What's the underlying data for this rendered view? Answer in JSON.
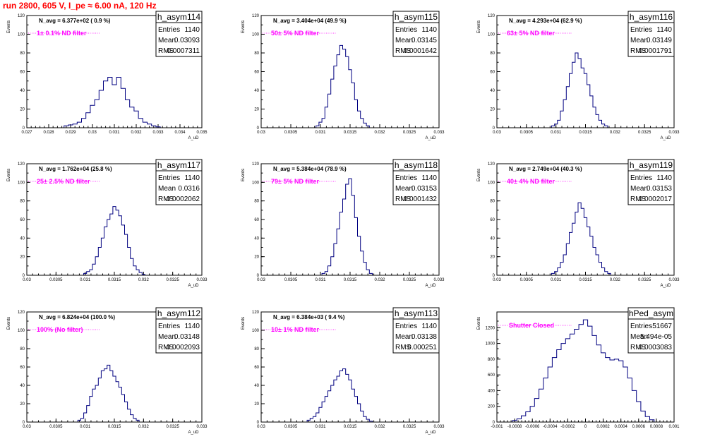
{
  "run_title": "run 2800,   605 V, I_pe ≈ 6.00 nA, 120 Hz",
  "colors": {
    "line": "#000080",
    "title": "#ff0000",
    "filter": "#ff00ff"
  },
  "chart_data": [
    {
      "type": "histogram",
      "name": "h_asym114",
      "nb_label": "N_avg = 6.377e+02 ( 0.9 %)",
      "filter_label": "1± 0.1% ND filter",
      "stats": {
        "entries": "1140",
        "mean": "0.03093",
        "rms": "0.0007311"
      },
      "ylabel": "Events",
      "xlabel": "A_uD",
      "xlim": [
        0.027,
        0.035
      ],
      "ylim": [
        0,
        120
      ],
      "xticks": [
        "0.027",
        "0.028",
        "0.029",
        "0.03",
        "0.031",
        "0.032",
        "0.033",
        "0.034",
        "0.035"
      ],
      "yticks": [
        "0",
        "20",
        "40",
        "60",
        "80",
        "100",
        "120"
      ],
      "hist_x": [
        0.0286,
        0.0288,
        0.029,
        0.0292,
        0.0294,
        0.0296,
        0.0298,
        0.03,
        0.0302,
        0.0304,
        0.0306,
        0.0308,
        0.031,
        0.0312,
        0.0314,
        0.0316,
        0.0318,
        0.032,
        0.0322,
        0.0324,
        0.0326,
        0.0328,
        0.033,
        0.0332
      ],
      "values": [
        0,
        2,
        3,
        4,
        6,
        10,
        16,
        24,
        30,
        40,
        50,
        54,
        46,
        54,
        42,
        30,
        22,
        18,
        10,
        6,
        4,
        2,
        1,
        0
      ]
    },
    {
      "type": "histogram",
      "name": "h_asym115",
      "nb_label": "N_avg = 3.404e+04 (49.9 %)",
      "filter_label": "50± 5% ND filter",
      "stats": {
        "entries": "1140",
        "mean": "0.03145",
        "rms": "0.0001642"
      },
      "ylabel": "Events",
      "xlabel": "A_uD",
      "xlim": [
        0.03,
        0.033
      ],
      "ylim": [
        0,
        120
      ],
      "xticks": [
        "0.03",
        "0.0305",
        "0.031",
        "0.0315",
        "0.032",
        "0.0325",
        "0.033"
      ],
      "yticks": [
        "0",
        "20",
        "40",
        "60",
        "80",
        "100",
        "120"
      ],
      "hist_x": [
        0.0309,
        0.03095,
        0.031,
        0.03105,
        0.0311,
        0.03115,
        0.0312,
        0.03125,
        0.0313,
        0.03135,
        0.0314,
        0.03145,
        0.0315,
        0.03155,
        0.0316,
        0.03165,
        0.0317,
        0.03175,
        0.0318,
        0.03185
      ],
      "values": [
        0,
        2,
        6,
        10,
        22,
        36,
        52,
        66,
        78,
        88,
        84,
        76,
        62,
        48,
        30,
        18,
        10,
        5,
        2,
        0
      ]
    },
    {
      "type": "histogram",
      "name": "h_asym116",
      "nb_label": "N_avg = 4.293e+04 (62.9 %)",
      "filter_label": "63± 5% ND filter",
      "stats": {
        "entries": "1140",
        "mean": "0.03149",
        "rms": "0.0001791"
      },
      "ylabel": "Events",
      "xlabel": "A_uD",
      "xlim": [
        0.03,
        0.033
      ],
      "ylim": [
        0,
        120
      ],
      "xticks": [
        "0.03",
        "0.0305",
        "0.031",
        "0.0315",
        "0.032",
        "0.0325",
        "0.033"
      ],
      "yticks": [
        "0",
        "20",
        "40",
        "60",
        "80",
        "100",
        "120"
      ],
      "hist_x": [
        0.0309,
        0.03095,
        0.031,
        0.03105,
        0.0311,
        0.03115,
        0.0312,
        0.03125,
        0.0313,
        0.03135,
        0.0314,
        0.03145,
        0.0315,
        0.03155,
        0.0316,
        0.03165,
        0.0317,
        0.03175,
        0.0318,
        0.03185,
        0.0319
      ],
      "values": [
        0,
        2,
        4,
        8,
        18,
        30,
        44,
        58,
        70,
        80,
        74,
        64,
        58,
        46,
        34,
        22,
        14,
        8,
        4,
        2,
        0
      ]
    },
    {
      "type": "histogram",
      "name": "h_asym117",
      "nb_label": "N_avg = 1.762e+04 (25.8 %)",
      "filter_label": "25± 2.5% ND filter",
      "stats": {
        "entries": "1140",
        "mean": "0.0316",
        "rms": "0.0002062"
      },
      "ylabel": "Events",
      "xlabel": "A_uD",
      "xlim": [
        0.03,
        0.033
      ],
      "ylim": [
        0,
        120
      ],
      "xticks": [
        "0.03",
        "0.0305",
        "0.031",
        "0.0315",
        "0.032",
        "0.0325",
        "0.033"
      ],
      "yticks": [
        "0",
        "20",
        "40",
        "60",
        "80",
        "100",
        "120"
      ],
      "hist_x": [
        0.03095,
        0.031,
        0.03105,
        0.0311,
        0.03115,
        0.0312,
        0.03125,
        0.0313,
        0.03135,
        0.0314,
        0.03145,
        0.0315,
        0.03155,
        0.0316,
        0.03165,
        0.0317,
        0.03175,
        0.0318,
        0.03185,
        0.0319,
        0.03195,
        0.032,
        0.03205
      ],
      "values": [
        0,
        2,
        4,
        6,
        12,
        20,
        30,
        40,
        52,
        60,
        66,
        74,
        70,
        64,
        54,
        44,
        30,
        18,
        10,
        6,
        3,
        1,
        0
      ]
    },
    {
      "type": "histogram",
      "name": "h_asym118",
      "nb_label": "N_avg = 5.384e+04 (78.9 %)",
      "filter_label": "79± 5% ND filter",
      "stats": {
        "entries": "1140",
        "mean": "0.03153",
        "rms": "0.0001432"
      },
      "ylabel": "Events",
      "xlabel": "A_uD",
      "xlim": [
        0.03,
        0.033
      ],
      "ylim": [
        0,
        120
      ],
      "xticks": [
        "0.03",
        "0.0305",
        "0.031",
        "0.0315",
        "0.032",
        "0.0325",
        "0.033"
      ],
      "yticks": [
        "0",
        "20",
        "40",
        "60",
        "80",
        "100",
        "120"
      ],
      "hist_x": [
        0.031,
        0.03105,
        0.0311,
        0.03115,
        0.0312,
        0.03125,
        0.0313,
        0.03135,
        0.0314,
        0.03145,
        0.0315,
        0.03155,
        0.0316,
        0.03165,
        0.0317,
        0.03175,
        0.0318,
        0.03185,
        0.0319
      ],
      "values": [
        0,
        2,
        4,
        10,
        20,
        34,
        50,
        68,
        82,
        98,
        104,
        86,
        62,
        42,
        26,
        14,
        6,
        2,
        0
      ]
    },
    {
      "type": "histogram",
      "name": "h_asym119",
      "nb_label": "N_avg = 2.749e+04 (40.3 %)",
      "filter_label": "40± 4% ND filter",
      "stats": {
        "entries": "1140",
        "mean": "0.03153",
        "rms": "0.0002017"
      },
      "ylabel": "Events",
      "xlabel": "A_uD",
      "xlim": [
        0.03,
        0.033
      ],
      "ylim": [
        0,
        120
      ],
      "xticks": [
        "0.03",
        "0.0305",
        "0.031",
        "0.0315",
        "0.032",
        "0.0325",
        "0.033"
      ],
      "yticks": [
        "0",
        "20",
        "40",
        "60",
        "80",
        "100",
        "120"
      ],
      "hist_x": [
        0.0309,
        0.03095,
        0.031,
        0.03105,
        0.0311,
        0.03115,
        0.0312,
        0.03125,
        0.0313,
        0.03135,
        0.0314,
        0.03145,
        0.0315,
        0.03155,
        0.0316,
        0.03165,
        0.0317,
        0.03175,
        0.0318,
        0.03185,
        0.0319,
        0.03195
      ],
      "values": [
        0,
        2,
        4,
        8,
        14,
        22,
        34,
        46,
        56,
        68,
        78,
        72,
        62,
        52,
        42,
        30,
        22,
        14,
        8,
        4,
        2,
        0
      ]
    },
    {
      "type": "histogram",
      "name": "h_asym112",
      "nb_label": "N_avg = 6.824e+04 (100.0 %)",
      "filter_label": "100% (No filter)",
      "stats": {
        "entries": "1140",
        "mean": "0.03148",
        "rms": "0.0002093"
      },
      "ylabel": "Events",
      "xlabel": "A_uD",
      "xlim": [
        0.03,
        0.033
      ],
      "ylim": [
        0,
        120
      ],
      "xticks": [
        "0.03",
        "0.0305",
        "0.031",
        "0.0315",
        "0.032",
        "0.0325",
        "0.033"
      ],
      "yticks": [
        "0",
        "20",
        "40",
        "60",
        "80",
        "100",
        "120"
      ],
      "hist_x": [
        0.03085,
        0.0309,
        0.03095,
        0.031,
        0.03105,
        0.0311,
        0.03115,
        0.0312,
        0.03125,
        0.0313,
        0.03135,
        0.0314,
        0.03145,
        0.0315,
        0.03155,
        0.0316,
        0.03165,
        0.0317,
        0.03175,
        0.0318,
        0.03185,
        0.0319,
        0.03195
      ],
      "values": [
        0,
        2,
        4,
        10,
        18,
        28,
        36,
        40,
        48,
        56,
        58,
        62,
        56,
        50,
        44,
        38,
        30,
        22,
        14,
        8,
        4,
        2,
        0
      ]
    },
    {
      "type": "histogram",
      "name": "h_asym113",
      "nb_label": "N_avg = 6.384e+03 ( 9.4 %)",
      "filter_label": "10± 1% ND filter",
      "stats": {
        "entries": "1140",
        "mean": "0.03138",
        "rms": "0.000251"
      },
      "ylabel": "Events",
      "xlabel": "A_uD",
      "xlim": [
        0.03,
        0.033
      ],
      "ylim": [
        0,
        120
      ],
      "xticks": [
        "0.03",
        "0.0305",
        "0.031",
        "0.0315",
        "0.032",
        "0.0325",
        "0.033"
      ],
      "yticks": [
        "0",
        "20",
        "40",
        "60",
        "80",
        "100",
        "120"
      ],
      "hist_x": [
        0.03075,
        0.0308,
        0.03085,
        0.0309,
        0.03095,
        0.031,
        0.03105,
        0.0311,
        0.03115,
        0.0312,
        0.03125,
        0.0313,
        0.03135,
        0.0314,
        0.03145,
        0.0315,
        0.03155,
        0.0316,
        0.03165,
        0.0317,
        0.03175,
        0.0318,
        0.03185,
        0.0319
      ],
      "values": [
        0,
        2,
        4,
        6,
        10,
        16,
        22,
        28,
        34,
        40,
        46,
        50,
        56,
        58,
        52,
        46,
        36,
        28,
        20,
        12,
        6,
        3,
        1,
        0
      ]
    },
    {
      "type": "histogram",
      "name": "hPed_asym",
      "nb_label": "",
      "filter_label": "Shutter Closed",
      "stats": {
        "entries": "51667",
        "mean": "5.494e-05",
        "rms": "0.0003083"
      },
      "ylabel": "Events",
      "xlabel": "",
      "xlim": [
        -0.001,
        0.001
      ],
      "ylim": [
        0,
        1400
      ],
      "xticks": [
        "-0.001",
        "-0.0008",
        "-0.0006",
        "-0.0004",
        "-0.0002",
        "0",
        "0.0002",
        "0.0004",
        "0.0006",
        "0.0008",
        "0.001"
      ],
      "yticks": [
        "0",
        "200",
        "400",
        "600",
        "800",
        "1000",
        "1200"
      ],
      "hist_x": [
        -0.00085,
        -0.0008,
        -0.00075,
        -0.0007,
        -0.00065,
        -0.0006,
        -0.00055,
        -0.0005,
        -0.00045,
        -0.0004,
        -0.00035,
        -0.0003,
        -0.00025,
        -0.0002,
        -0.00015,
        -0.0001,
        -5e-05,
        0,
        5e-05,
        0.0001,
        0.00015,
        0.0002,
        0.00025,
        0.0003,
        0.00035,
        0.0004,
        0.00045,
        0.0005,
        0.00055,
        0.0006,
        0.00065,
        0.0007,
        0.00075,
        0.0008
      ],
      "values": [
        0,
        20,
        40,
        80,
        130,
        200,
        300,
        420,
        560,
        700,
        820,
        920,
        1000,
        1060,
        1120,
        1180,
        1240,
        1300,
        1220,
        1100,
        980,
        880,
        820,
        790,
        800,
        780,
        700,
        560,
        400,
        260,
        140,
        70,
        30,
        0
      ]
    }
  ]
}
